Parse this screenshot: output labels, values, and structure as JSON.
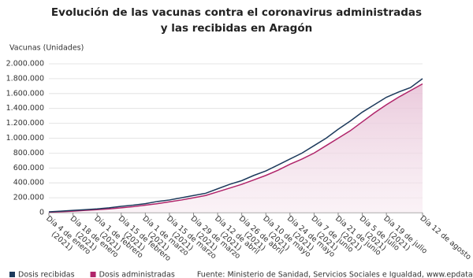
{
  "chart_data": {
    "type": "line",
    "title": "Evolución de las vacunas contra el coronavirus administradas y las recibidas en Aragón",
    "y_label": "Vacunas (Unidades)",
    "categories": [
      "Día 4 de enero (2021)",
      null,
      "Día 18 de enero (2021)",
      null,
      "Día 1 de febrero (2021)",
      null,
      "Día 15 de febrero (2021)",
      null,
      "Día 1 de marzo (2021)",
      null,
      "Día 15 de marzo (2021)",
      null,
      "Día 29 de marzo (2021)",
      null,
      "Día 12 de abril (2021)",
      null,
      "Día 26 de abril (2021)",
      null,
      "Día 10 de mayo (2021)",
      null,
      "Día 24 de mayo (2021)",
      null,
      "Día 7 de junio (2021)",
      null,
      "Día 21 de junio (2021)",
      null,
      "Día 5 de julio (2021)",
      null,
      "Día 19 de julio (2021)",
      null,
      null,
      "Día 12 de agosto"
    ],
    "series": [
      {
        "name": "Dosis recibidas",
        "color": "#1d3a5c",
        "values": [
          10000,
          20000,
          30000,
          40000,
          50000,
          65000,
          85000,
          100000,
          120000,
          150000,
          170000,
          200000,
          230000,
          260000,
          320000,
          380000,
          430000,
          500000,
          560000,
          640000,
          720000,
          800000,
          900000,
          1000000,
          1120000,
          1230000,
          1350000,
          1450000,
          1550000,
          1620000,
          1680000,
          1800000
        ]
      },
      {
        "name": "Dosis administradas",
        "color": "#b0246a",
        "area": true,
        "values": [
          5000,
          12000,
          20000,
          30000,
          40000,
          50000,
          65000,
          80000,
          100000,
          120000,
          145000,
          170000,
          200000,
          230000,
          280000,
          330000,
          380000,
          440000,
          500000,
          570000,
          650000,
          720000,
          800000,
          900000,
          1000000,
          1100000,
          1220000,
          1340000,
          1450000,
          1550000,
          1640000,
          1730000
        ]
      }
    ],
    "ylim": [
      0,
      2000000
    ],
    "yticks": [
      0,
      {
        "value": 200000,
        "label": "200.000"
      },
      {
        "value": 400000,
        "label": "400.000"
      },
      {
        "value": 600000,
        "label": "600.000"
      },
      {
        "value": 800000,
        "label": "800.000"
      },
      {
        "value": 1000000,
        "label": "1.000.000"
      },
      {
        "value": 1200000,
        "label": "1.200.000"
      },
      {
        "value": 1400000,
        "label": "1.400.000"
      },
      {
        "value": 1600000,
        "label": "1.600.000"
      },
      {
        "value": 1800000,
        "label": "1.800.000"
      },
      {
        "value": 2000000,
        "label": "2.000.000"
      }
    ],
    "grid": true,
    "source": "Fuente: Ministerio de Sanidad, Servicios Sociales e Igualdad, www.epdata.es"
  }
}
